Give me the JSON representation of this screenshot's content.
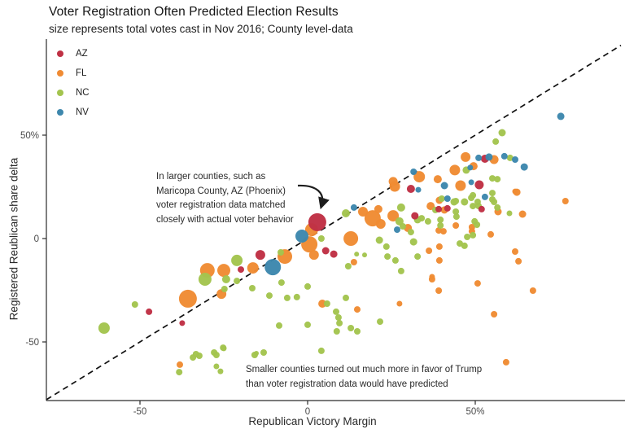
{
  "title": "Voter Registration Often Predicted Election Results",
  "subtitle": "size represents total votes cast in Nov 2016; County level-data",
  "legend": {
    "position": "top-left inside plot",
    "items": [
      {
        "label": "AZ",
        "color": "#bf3044"
      },
      {
        "label": "FL",
        "color": "#f08b33"
      },
      {
        "label": "NC",
        "color": "#a3c44e"
      },
      {
        "label": "NV",
        "color": "#3d87ad"
      }
    ]
  },
  "annotations": {
    "larger_counties": {
      "text": "In larger counties, such as\nMaricopa County, AZ (Phoenix)\nvoter registration data matched\nclosely with actual voter behavior",
      "arrow_target": "large AZ point near (3, 8)"
    },
    "smaller_counties": {
      "text": "Smaller counties turned out much more in favor of Trump\nthan voter registration data would have predicted"
    }
  },
  "chart_data": {
    "type": "scatter",
    "title": "Voter Registration Often Predicted Election Results",
    "subtitle": "size represents total votes cast in Nov 2016; County level-data",
    "xlabel": "Republican Victory Margin",
    "ylabel": "Registered Reublican share delta",
    "xlim": [
      -78,
      93
    ],
    "ylim": [
      -78,
      96
    ],
    "grid": false,
    "reference_line": {
      "style": "dashed",
      "equation": "y = x"
    },
    "x_ticks": [
      {
        "value": -50,
        "label": "-50"
      },
      {
        "value": 0,
        "label": "0"
      },
      {
        "value": 50,
        "label": "50%"
      }
    ],
    "y_ticks": [
      {
        "value": -50,
        "label": "-50"
      },
      {
        "value": 0,
        "label": "0"
      },
      {
        "value": 50,
        "label": "50%"
      }
    ],
    "point_format": "[republican_victory_margin, registered_republican_share_delta, marker_radius_px]",
    "series": [
      {
        "name": "FL",
        "color": "#f08b33",
        "points": [
          [
            -35.7,
            -29.1,
            11
          ],
          [
            -29.9,
            -15.4,
            9
          ],
          [
            -25.0,
            -15.4,
            8
          ],
          [
            -16.3,
            -14.2,
            7
          ],
          [
            -6.8,
            -8.7,
            9
          ],
          [
            0.5,
            -2.8,
            10
          ],
          [
            1.2,
            4.3,
            8
          ],
          [
            1.9,
            -7.9,
            6
          ],
          [
            12.9,
            0.0,
            9
          ],
          [
            19.4,
            9.8,
            10
          ],
          [
            21.1,
            14.2,
            5
          ],
          [
            21.8,
            7.1,
            6
          ],
          [
            25.5,
            11.0,
            7
          ],
          [
            29.9,
            5.1,
            5
          ],
          [
            16.5,
            13.0,
            6
          ],
          [
            -25.7,
            -26.8,
            6
          ],
          [
            -38.1,
            -61.0,
            4
          ],
          [
            13.8,
            -11.4,
            4
          ],
          [
            37.1,
            -18.5,
            3.5
          ],
          [
            25.5,
            27.6,
            5.5
          ],
          [
            26.0,
            25.2,
            6.5
          ],
          [
            33.3,
            29.9,
            7
          ],
          [
            38.8,
            28.7,
            5
          ],
          [
            43.9,
            33.1,
            6.5
          ],
          [
            45.6,
            25.6,
            6.5
          ],
          [
            47.1,
            39.4,
            6
          ],
          [
            49.5,
            35.0,
            5
          ],
          [
            55.6,
            38.2,
            5.5
          ],
          [
            36.7,
            15.7,
            5
          ],
          [
            61.9,
            22.8,
            3.5
          ],
          [
            76.9,
            18.1,
            4
          ],
          [
            39.3,
            18.5,
            4.5
          ],
          [
            40.8,
            13.8,
            4.5
          ],
          [
            39.1,
            3.9,
            4
          ],
          [
            40.5,
            3.5,
            4
          ],
          [
            44.2,
            6.3,
            4
          ],
          [
            49.0,
            5.5,
            4
          ],
          [
            49.0,
            3.5,
            4
          ],
          [
            54.6,
            2.0,
            4
          ],
          [
            56.8,
            13.0,
            4.5
          ],
          [
            64.1,
            11.8,
            4.5
          ],
          [
            36.2,
            -5.9,
            4
          ],
          [
            39.3,
            -3.9,
            4
          ],
          [
            39.3,
            -10.6,
            4
          ],
          [
            37.1,
            -19.7,
            4
          ],
          [
            39.1,
            -25.2,
            4
          ],
          [
            50.7,
            -21.7,
            4
          ],
          [
            67.2,
            -25.2,
            4
          ],
          [
            55.6,
            -36.6,
            4
          ],
          [
            61.9,
            -6.3,
            4
          ],
          [
            62.9,
            -11.0,
            4
          ],
          [
            62.4,
            22.4,
            4.5
          ],
          [
            4.4,
            -31.5,
            5
          ],
          [
            14.8,
            -34.3,
            4
          ],
          [
            27.4,
            -31.5,
            3.5
          ],
          [
            59.2,
            -59.8,
            4
          ]
        ]
      },
      {
        "name": "NC",
        "color": "#a3c44e",
        "points": [
          [
            11.4,
            12.2,
            5
          ],
          [
            27.9,
            15.0,
            5
          ],
          [
            27.4,
            8.3,
            5
          ],
          [
            28.4,
            5.9,
            4
          ],
          [
            30.8,
            3.1,
            4
          ],
          [
            32.8,
            9.1,
            4.5
          ],
          [
            31.6,
            -1.6,
            4.5
          ],
          [
            32.8,
            -8.7,
            4
          ],
          [
            23.8,
            -8.7,
            4
          ],
          [
            26.2,
            -10.6,
            4
          ],
          [
            27.9,
            -15.7,
            4
          ],
          [
            12.1,
            -13.4,
            4
          ],
          [
            14.6,
            -7.5,
            3
          ],
          [
            17.0,
            -7.9,
            3
          ],
          [
            21.4,
            -0.8,
            4.5
          ],
          [
            23.5,
            -3.9,
            4
          ],
          [
            4.1,
            0.0,
            4
          ],
          [
            -8.0,
            -6.7,
            4
          ],
          [
            -21.1,
            -10.6,
            7
          ],
          [
            -30.6,
            -19.7,
            8
          ],
          [
            -24.3,
            -19.7,
            5
          ],
          [
            -21.1,
            -20.5,
            4
          ],
          [
            -24.8,
            -24.4,
            4
          ],
          [
            -16.5,
            -24.0,
            4
          ],
          [
            -7.8,
            -21.3,
            4
          ],
          [
            0.0,
            -23.2,
            4
          ],
          [
            -51.5,
            -31.9,
            4
          ],
          [
            -60.7,
            -43.3,
            7
          ],
          [
            -33.3,
            -55.9,
            4
          ],
          [
            -27.2,
            -56.3,
            4
          ],
          [
            -25.0,
            -53.1,
            3.5
          ],
          [
            -15.3,
            -55.5,
            3
          ],
          [
            -38.3,
            -64.6,
            4
          ],
          [
            -27.2,
            -61.8,
            3.5
          ],
          [
            -26.0,
            -64.2,
            3.5
          ],
          [
            -34.2,
            -57.5,
            4
          ],
          [
            -32.3,
            -56.7,
            4
          ],
          [
            -27.9,
            -55.1,
            4
          ],
          [
            -25.2,
            -52.8,
            4
          ],
          [
            -11.4,
            -27.6,
            4
          ],
          [
            -6.1,
            -28.7,
            4
          ],
          [
            -3.2,
            -28.3,
            4
          ],
          [
            5.8,
            -31.5,
            4
          ],
          [
            11.4,
            -28.7,
            4
          ],
          [
            8.5,
            -35.4,
            4
          ],
          [
            9.2,
            -38.2,
            4
          ],
          [
            9.5,
            -40.9,
            4
          ],
          [
            12.9,
            -43.3,
            4
          ],
          [
            8.7,
            -44.9,
            4
          ],
          [
            14.8,
            -44.9,
            4
          ],
          [
            -8.5,
            -42.1,
            4
          ],
          [
            0.0,
            -41.7,
            4
          ],
          [
            21.6,
            -40.2,
            4
          ],
          [
            4.1,
            -54.3,
            4
          ],
          [
            -15.8,
            -56.3,
            4
          ],
          [
            -13.1,
            -55.1,
            4
          ],
          [
            43.7,
            17.7,
            4.5
          ],
          [
            46.8,
            17.7,
            4.5
          ],
          [
            48.8,
            19.7,
            4
          ],
          [
            49.3,
            15.7,
            4
          ],
          [
            51.0,
            15.7,
            4
          ],
          [
            55.1,
            18.9,
            4
          ],
          [
            56.6,
            15.0,
            4
          ],
          [
            44.2,
            18.1,
            4
          ],
          [
            44.2,
            13.0,
            4
          ],
          [
            44.4,
            10.6,
            4
          ],
          [
            34.0,
            9.8,
            4
          ],
          [
            35.9,
            8.3,
            4
          ],
          [
            49.8,
            8.3,
            4
          ],
          [
            50.5,
            6.7,
            4
          ],
          [
            47.6,
            0.8,
            4
          ],
          [
            49.3,
            1.6,
            4
          ],
          [
            45.4,
            -2.4,
            4
          ],
          [
            46.8,
            -3.5,
            4
          ],
          [
            60.2,
            12.2,
            3.5
          ],
          [
            58.0,
            51.2,
            4.5
          ],
          [
            56.1,
            46.9,
            4
          ],
          [
            55.1,
            29.1,
            4
          ],
          [
            56.6,
            28.7,
            4
          ],
          [
            55.1,
            22.0,
            4
          ],
          [
            55.6,
            17.7,
            4
          ],
          [
            60.4,
            39.0,
            4
          ],
          [
            47.3,
            33.1,
            4.5
          ],
          [
            49.3,
            20.9,
            4
          ],
          [
            50.7,
            17.7,
            4
          ],
          [
            39.6,
            9.1,
            4
          ],
          [
            39.6,
            6.3,
            4
          ],
          [
            40.0,
            19.3,
            4
          ],
          [
            38.1,
            13.8,
            4
          ]
        ]
      },
      {
        "name": "AZ",
        "color": "#bf3044",
        "points": [
          [
            2.9,
            7.9,
            11
          ],
          [
            5.4,
            -5.9,
            4.5
          ],
          [
            7.8,
            -7.5,
            4.5
          ],
          [
            30.8,
            24.0,
            5
          ],
          [
            32.0,
            11.0,
            4.5
          ],
          [
            39.1,
            14.2,
            4
          ],
          [
            41.7,
            14.6,
            4
          ],
          [
            51.9,
            14.2,
            4
          ],
          [
            51.2,
            26.0,
            5.5
          ],
          [
            52.9,
            38.6,
            5
          ],
          [
            -14.1,
            -7.9,
            6
          ],
          [
            -19.9,
            -15.0,
            4
          ],
          [
            -47.3,
            -35.4,
            4
          ],
          [
            -37.4,
            -40.9,
            3.5
          ]
        ]
      },
      {
        "name": "NV",
        "color": "#3d87ad",
        "points": [
          [
            -10.4,
            -13.8,
            10
          ],
          [
            -1.7,
            1.2,
            8
          ],
          [
            13.8,
            15.0,
            4
          ],
          [
            26.7,
            4.3,
            4
          ],
          [
            31.6,
            32.3,
            4
          ],
          [
            33.0,
            23.6,
            3.5
          ],
          [
            40.8,
            25.6,
            4.5
          ],
          [
            41.7,
            19.3,
            4
          ],
          [
            48.5,
            34.3,
            3.5
          ],
          [
            48.8,
            27.2,
            3.5
          ],
          [
            51.0,
            39.0,
            4
          ],
          [
            52.9,
            20.1,
            4
          ],
          [
            54.1,
            39.4,
            4.5
          ],
          [
            58.7,
            39.8,
            4
          ],
          [
            61.9,
            38.2,
            4
          ],
          [
            64.6,
            34.6,
            4.5
          ],
          [
            75.5,
            59.1,
            4.5
          ]
        ]
      }
    ]
  }
}
